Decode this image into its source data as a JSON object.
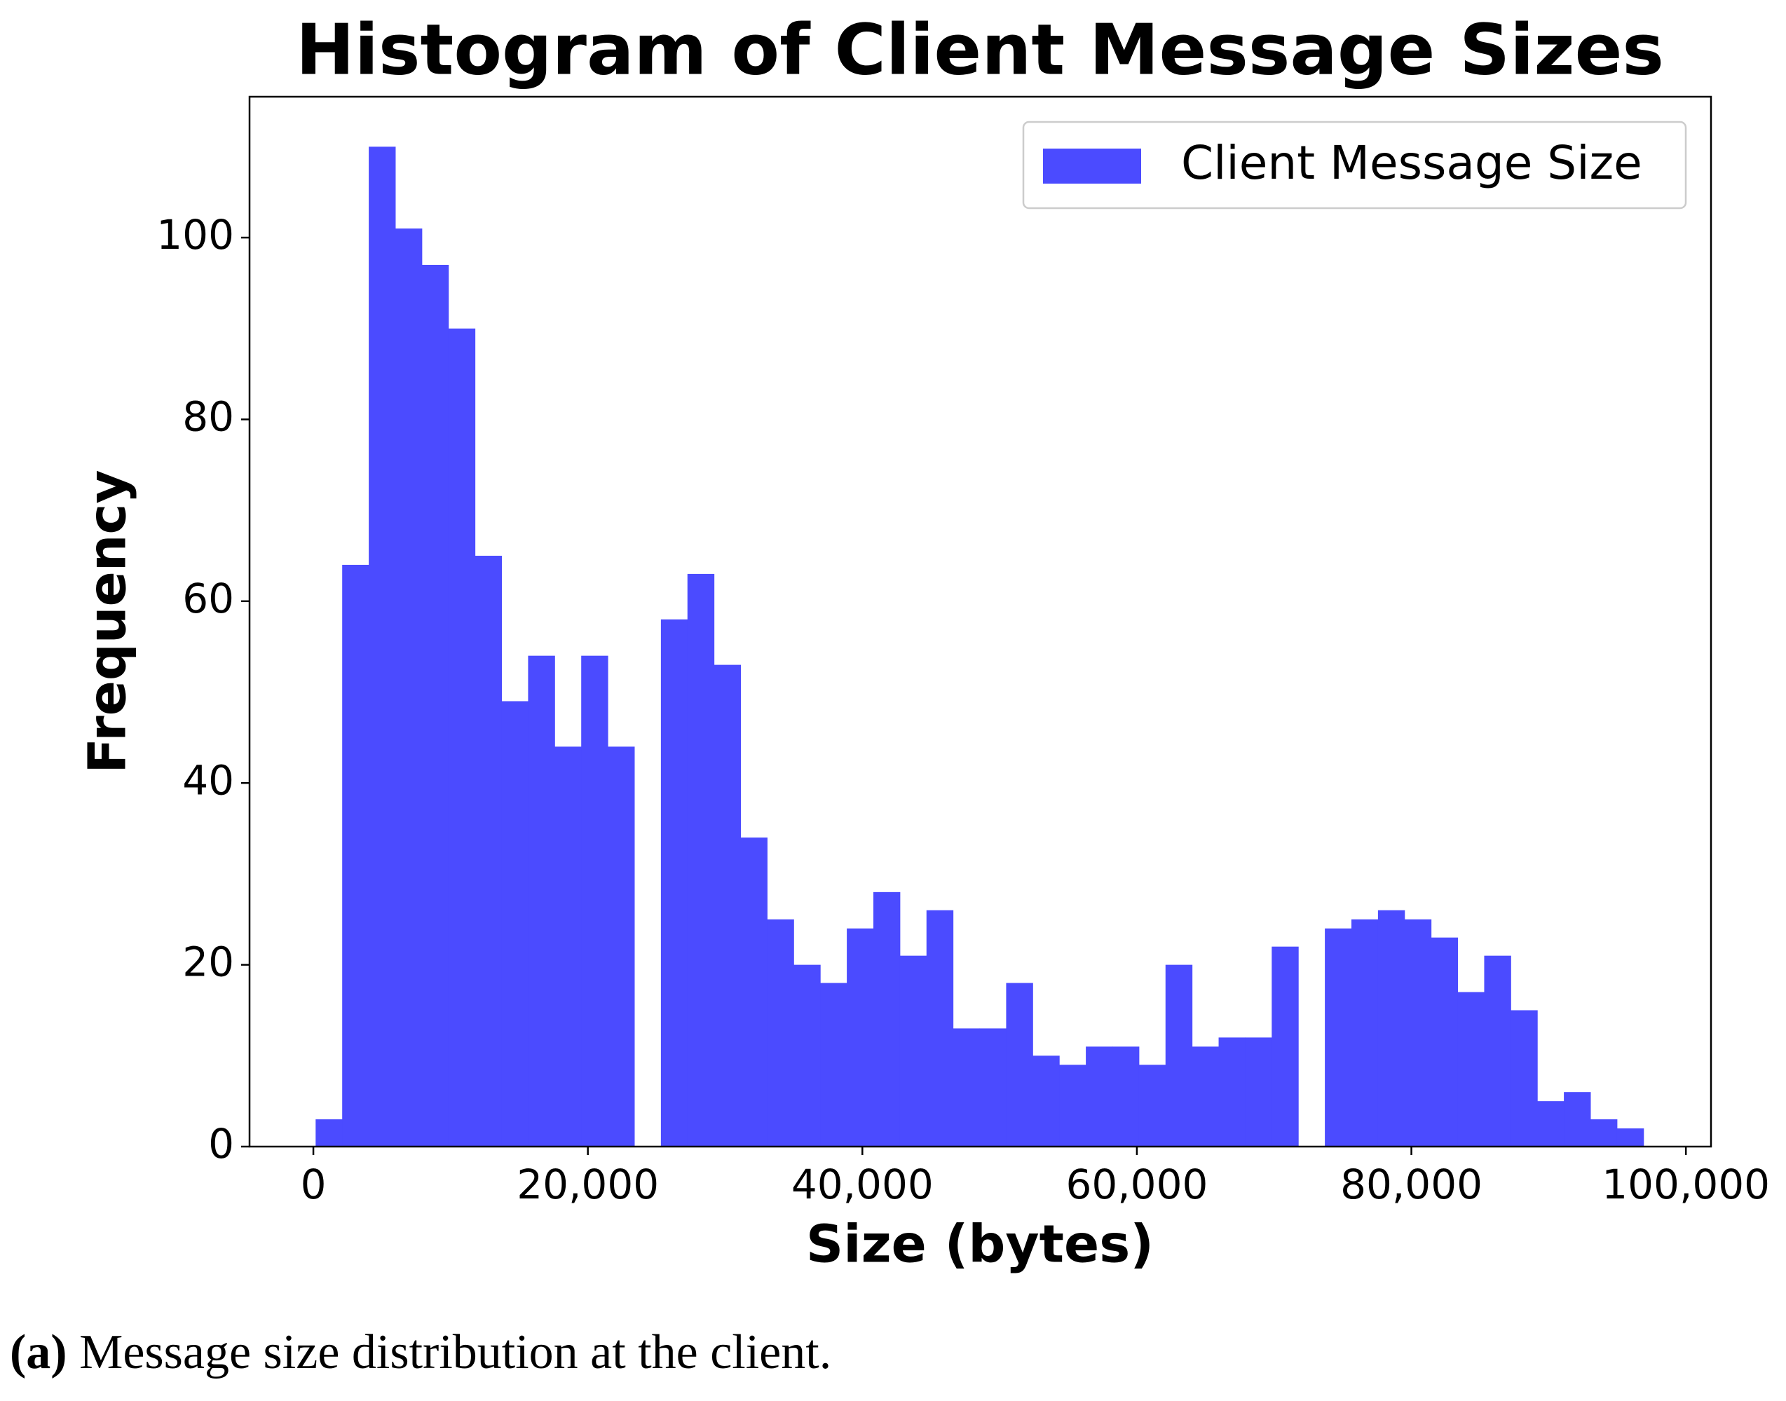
{
  "chart_data": {
    "type": "histogram",
    "title": "Histogram of Client Message Sizes",
    "x_label": "Size (bytes)",
    "y_label": "Frequency",
    "bins": [
      166,
      2101,
      4036,
      5971,
      7906,
      9841,
      11776,
      13711,
      15646,
      17581,
      19516,
      21451,
      23386,
      25321,
      27256,
      29191,
      31126,
      33061,
      34996,
      36931,
      38866,
      40801,
      42736,
      44671,
      46606,
      48541,
      50476,
      52411,
      54346,
      56281,
      58216,
      60151,
      62086,
      64021,
      65956,
      67891,
      69826,
      71761,
      73696,
      75631,
      77566,
      79501,
      81436,
      83371,
      85306,
      87241,
      89176,
      91111,
      93046,
      94981,
      96916
    ],
    "series": [
      {
        "name": "Client Message Size",
        "color": "#4b4bff",
        "values": [
          3,
          64,
          110,
          101,
          97,
          90,
          65,
          49,
          54,
          44,
          54,
          44,
          0,
          58,
          63,
          53,
          34,
          25,
          20,
          18,
          24,
          28,
          21,
          26,
          13,
          13,
          18,
          10,
          9,
          11,
          11,
          9,
          20,
          11,
          12,
          12,
          22,
          0,
          24,
          25,
          26,
          25,
          23,
          17,
          21,
          15,
          5,
          6,
          3,
          2
        ]
      }
    ],
    "xlim": [
      -4650,
      101830
    ],
    "ylim": [
      0,
      115.5
    ],
    "xticks": [
      0,
      {
        "value": 20000,
        "label": "20,000"
      },
      {
        "value": 40000,
        "label": "40,000"
      },
      {
        "value": 60000,
        "label": "60,000"
      },
      {
        "value": 80000,
        "label": "80,000"
      },
      {
        "value": 100000,
        "label": "100,000"
      }
    ],
    "yticks": [
      0,
      20,
      40,
      60,
      80,
      100
    ],
    "legend": "upper right",
    "grid": false
  },
  "caption": {
    "label": "(a)",
    "text": "Message size distribution at the client."
  }
}
